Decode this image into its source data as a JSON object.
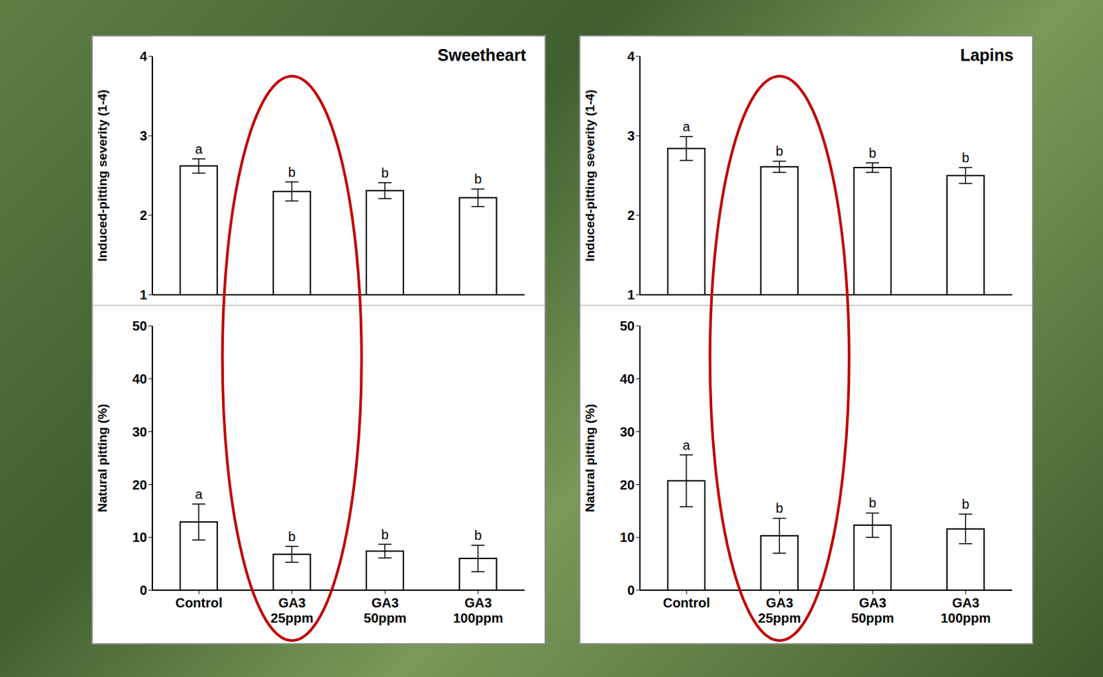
{
  "chart_data": [
    {
      "type": "bar",
      "title": "Sweetheart",
      "y_label": "Induced-pitting severity (1-4)",
      "categories": [
        null,
        null,
        null,
        null
      ],
      "values": [
        2.62,
        2.3,
        2.31,
        2.22
      ],
      "errors": [
        0.09,
        0.12,
        0.1,
        0.11
      ],
      "letters": [
        "a",
        "b",
        "b",
        "b"
      ],
      "color": "#ffffff",
      "ylim": [
        1,
        4
      ],
      "yticks": [
        1,
        2,
        3,
        4
      ],
      "grid": false,
      "tick_labels": "y"
    },
    {
      "type": "bar",
      "y_label": "Natural pitting (%)",
      "categories": [
        "Control",
        "GA3 25ppm",
        "GA3 50ppm",
        "GA3 100ppm"
      ],
      "values": [
        12.9,
        6.8,
        7.4,
        6.0
      ],
      "errors": [
        3.4,
        1.5,
        1.3,
        2.5
      ],
      "letters": [
        "a",
        "b",
        "b",
        "b"
      ],
      "color": "#ffffff",
      "ylim": [
        0,
        50
      ],
      "yticks": [
        0,
        10,
        20,
        30,
        40,
        50
      ],
      "grid": false
    },
    {
      "type": "bar",
      "title": "Lapins",
      "y_label": "Induced-pitting severity (1-4)",
      "categories": [
        null,
        null,
        null,
        null
      ],
      "values": [
        2.84,
        2.61,
        2.6,
        2.5
      ],
      "errors": [
        0.15,
        0.07,
        0.06,
        0.1
      ],
      "letters": [
        "a",
        "b",
        "b",
        "b"
      ],
      "color": "#ffffff",
      "ylim": [
        1,
        4
      ],
      "yticks": [
        1,
        2,
        3,
        4
      ],
      "grid": false,
      "tick_labels": "y"
    },
    {
      "type": "bar",
      "y_label": "Natural pitting (%)",
      "categories": [
        "Control",
        "GA3 25ppm",
        "GA3 50ppm",
        "GA3 100ppm"
      ],
      "values": [
        20.7,
        10.3,
        12.3,
        11.6
      ],
      "errors": [
        4.9,
        3.3,
        2.3,
        2.8
      ],
      "letters": [
        "a",
        "b",
        "b",
        "b"
      ],
      "color": "#ffffff",
      "ylim": [
        0,
        50
      ],
      "yticks": [
        0,
        10,
        20,
        30,
        40,
        50
      ],
      "grid": false
    }
  ]
}
